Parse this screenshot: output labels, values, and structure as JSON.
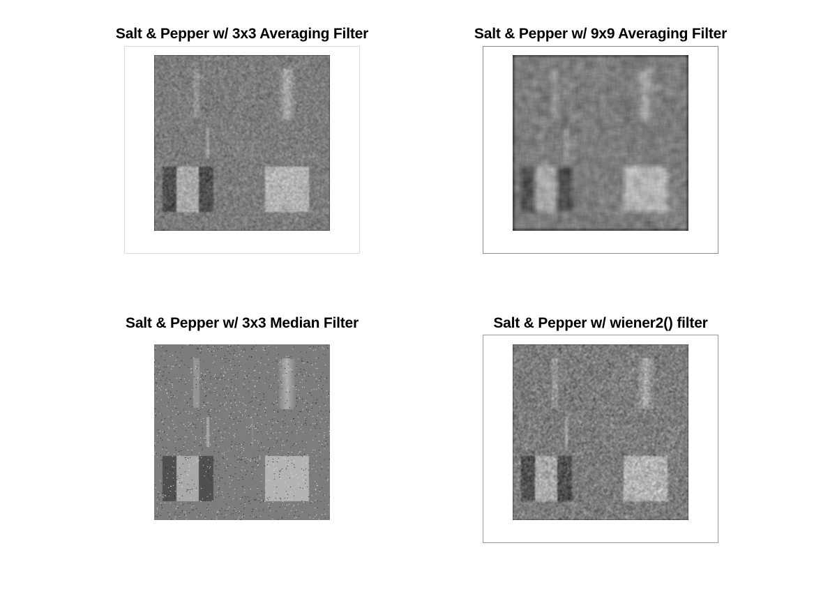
{
  "figure": {
    "panels": [
      {
        "title": "Salt & Pepper w/ 3x3 Averaging Filter",
        "filter": "avg3",
        "box_color": "#dcdcdc"
      },
      {
        "title": "Salt & Pepper w/ 9x9 Averaging Filter",
        "filter": "avg9",
        "box_color": "#8c8c8c"
      },
      {
        "title": "Salt & Pepper w/ 3x3 Median Filter",
        "filter": "median3",
        "box_color": ""
      },
      {
        "title": "Salt & Pepper w/ wiener2() filter",
        "filter": "wiener",
        "box_color": "#9a9a9a"
      }
    ]
  }
}
